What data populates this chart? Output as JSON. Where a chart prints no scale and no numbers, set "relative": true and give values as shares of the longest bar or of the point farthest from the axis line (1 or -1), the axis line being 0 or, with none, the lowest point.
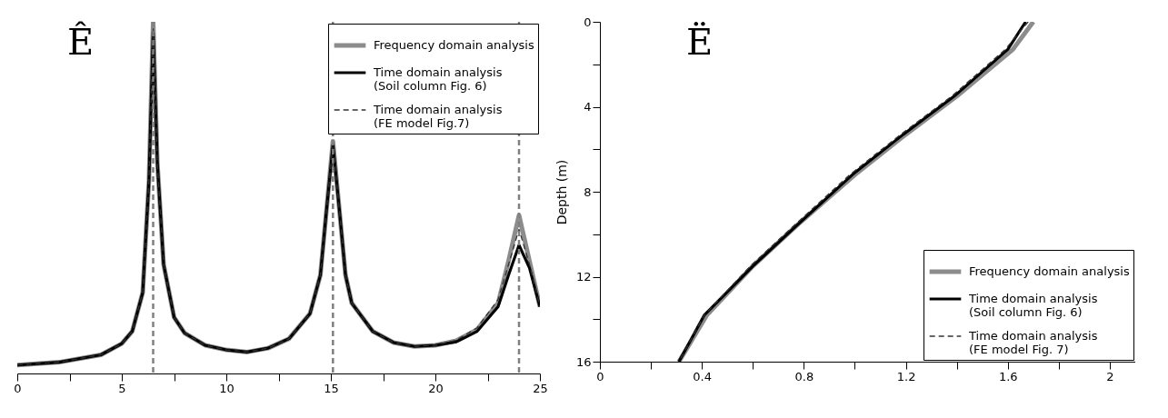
{
  "chart_data": [
    {
      "type": "line",
      "relative": true,
      "legend": "top right",
      "annotations": [
        "Ê"
      ],
      "xlim": [
        0,
        25
      ],
      "xticks": [
        0,
        {
          "value": 2.5,
          "label": null
        },
        5,
        {
          "value": 7.5,
          "label": null
        },
        10,
        {
          "value": 12.5,
          "label": null
        },
        15,
        {
          "value": 17.5,
          "label": null
        },
        20,
        {
          "value": 22.5,
          "label": null
        },
        25
      ],
      "ref_lines": [
        {
          "axis": "x",
          "value": 6.5,
          "color": "#808080",
          "line_style": "dashed"
        },
        {
          "axis": "x",
          "value": 15.1,
          "color": "#808080",
          "line_style": "dashed"
        },
        {
          "axis": "x",
          "value": 24,
          "color": "#808080",
          "line_style": "dashed"
        }
      ],
      "series": [
        {
          "name": "Frequency domain analysis",
          "color": "#8c8c8c",
          "line_style": "solid",
          "x": [
            0,
            2,
            4,
            5,
            5.5,
            6,
            6.3,
            6.5,
            6.7,
            7,
            7.5,
            8,
            9,
            10,
            11,
            12,
            13,
            14,
            14.5,
            14.8,
            15.1,
            15.4,
            15.7,
            16,
            17,
            18,
            19,
            20,
            21,
            22,
            23,
            23.5,
            24,
            24.5,
            25
          ],
          "values": [
            0.024,
            0.032,
            0.053,
            0.085,
            0.12,
            0.23,
            0.55,
            1,
            0.6,
            0.31,
            0.16,
            0.115,
            0.08,
            0.067,
            0.061,
            0.072,
            0.099,
            0.17,
            0.28,
            0.47,
            0.66,
            0.47,
            0.28,
            0.2,
            0.12,
            0.088,
            0.077,
            0.08,
            0.093,
            0.125,
            0.2,
            0.32,
            0.45,
            0.32,
            0.19
          ]
        },
        {
          "name": "Time domain analysis\n(Soil column Fig. 6)",
          "color": "#000000",
          "line_style": "solid",
          "x": [
            0,
            2,
            4,
            5,
            5.5,
            6,
            6.3,
            6.5,
            6.7,
            7,
            7.5,
            8,
            9,
            10,
            11,
            12,
            13,
            14,
            14.5,
            14.8,
            15.1,
            15.4,
            15.7,
            16,
            17,
            18,
            19,
            20,
            21,
            22,
            23,
            23.5,
            24,
            24.5,
            25
          ],
          "values": [
            0.024,
            0.032,
            0.053,
            0.085,
            0.12,
            0.23,
            0.55,
            0.97,
            0.6,
            0.31,
            0.16,
            0.115,
            0.08,
            0.067,
            0.061,
            0.072,
            0.099,
            0.17,
            0.28,
            0.47,
            0.65,
            0.47,
            0.28,
            0.2,
            0.12,
            0.088,
            0.077,
            0.08,
            0.09,
            0.12,
            0.19,
            0.28,
            0.365,
            0.3,
            0.19
          ]
        },
        {
          "name": "Time domain analysis\n(FE model Fig.7)",
          "color": "#333333",
          "line_style": "dashed",
          "x": [
            0,
            2,
            4,
            5,
            5.5,
            6,
            6.3,
            6.5,
            6.7,
            7,
            7.5,
            8,
            9,
            10,
            11,
            12,
            13,
            14,
            14.5,
            14.8,
            15.1,
            15.4,
            15.7,
            16,
            17,
            18,
            19,
            20,
            21,
            22,
            23,
            23.5,
            24,
            24.5,
            25
          ],
          "values": [
            0.024,
            0.032,
            0.053,
            0.085,
            0.12,
            0.23,
            0.55,
            0.98,
            0.6,
            0.31,
            0.16,
            0.115,
            0.08,
            0.067,
            0.061,
            0.072,
            0.099,
            0.17,
            0.28,
            0.47,
            0.65,
            0.47,
            0.28,
            0.2,
            0.12,
            0.088,
            0.077,
            0.08,
            0.095,
            0.13,
            0.21,
            0.31,
            0.41,
            0.31,
            0.19
          ]
        }
      ]
    },
    {
      "type": "line",
      "legend": "bottom right",
      "annotations": [
        "Ë"
      ],
      "ylabel": "Depth (m)",
      "xlim": [
        0,
        2.1
      ],
      "xticks": [
        0,
        {
          "value": 0.2,
          "label": null
        },
        0.4,
        {
          "value": 0.6,
          "label": null
        },
        0.8,
        {
          "value": 1.0,
          "label": null
        },
        1.2,
        {
          "value": 1.4,
          "label": null
        },
        1.6,
        {
          "value": 1.8,
          "label": null
        },
        2
      ],
      "ylim": [
        16,
        0
      ],
      "yticks": [
        0,
        {
          "value": 2,
          "label": null
        },
        4,
        {
          "value": 6,
          "label": null
        },
        8,
        {
          "value": 10,
          "label": null
        },
        12,
        {
          "value": 14,
          "label": null
        },
        16
      ],
      "series": [
        {
          "name": "Frequency domain analysis",
          "color": "#8c8c8c",
          "line_style": "solid",
          "x": [
            1.7,
            1.62,
            1.4,
            1.2,
            1.0,
            0.78,
            0.6,
            0.42,
            0.31
          ],
          "values": [
            0,
            1.3,
            3.5,
            5.3,
            7.2,
            9.5,
            11.5,
            13.8,
            16
          ]
        },
        {
          "name": "Time domain analysis\n(Soil column Fig. 6)",
          "color": "#000000",
          "line_style": "solid",
          "x": [
            1.67,
            1.6,
            1.39,
            1.19,
            0.99,
            0.78,
            0.6,
            0.41,
            0.31
          ],
          "values": [
            0,
            1.3,
            3.5,
            5.3,
            7.2,
            9.5,
            11.5,
            13.8,
            16
          ]
        },
        {
          "name": "Time domain analysis\n(FE model Fig. 7)",
          "color": "#333333",
          "line_style": "dashed",
          "x": [
            1.68,
            1.59,
            1.38,
            1.18,
            0.98,
            0.77,
            0.59,
            0.41,
            0.31
          ],
          "values": [
            0,
            1.3,
            3.5,
            5.3,
            7.2,
            9.5,
            11.5,
            13.8,
            16
          ]
        }
      ]
    }
  ]
}
